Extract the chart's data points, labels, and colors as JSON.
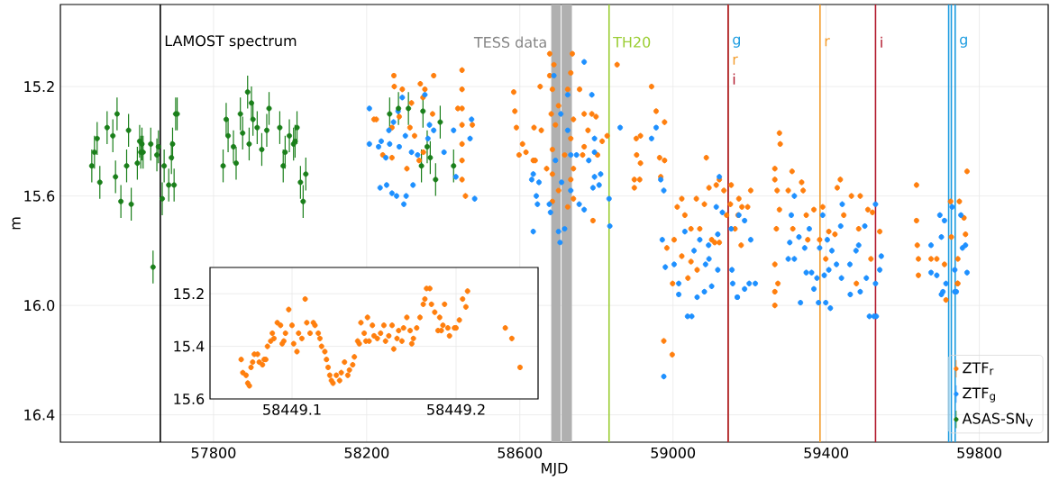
{
  "chart_data": [
    {
      "type": "scatter",
      "xlabel": "MJD",
      "ylabel": "m",
      "xlim": [
        57400,
        59980
      ],
      "ylim": [
        16.5,
        14.9
      ],
      "xticks": [
        57800,
        58200,
        58600,
        59000,
        59400,
        59800
      ],
      "yticks": [
        15.2,
        15.6,
        {
          "value": 16.0,
          "label": "16.0"
        },
        16.4
      ],
      "grid": true,
      "legend": "bottom right",
      "marker": "circle",
      "series": [
        {
          "name": "ZTF$_{r}$",
          "color": "#ff7f0e",
          "x": [
            58219,
            58225,
            58271,
            58272,
            58293,
            58340,
            58352,
            58375,
            58347,
            58317,
            58285,
            58313,
            58266,
            58325,
            58372,
            58242,
            58266,
            58305,
            58337,
            58348,
            58458,
            58476,
            58438,
            58449,
            58449,
            58449,
            58449,
            58449,
            58449,
            58449,
            58584,
            58587,
            58591,
            58607,
            58598,
            58616,
            58635,
            58640,
            58637,
            58653,
            58656,
            58670,
            58678,
            58689,
            58678,
            58737,
            58685,
            58733,
            58725,
            58701,
            58682,
            58740,
            58693,
            58733,
            58685,
            58717,
            58740,
            58685,
            58733,
            58701,
            58740,
            58685,
            58725,
            58756,
            58768,
            58788,
            58799,
            58768,
            58764,
            58778,
            58803,
            58815,
            58828,
            58791,
            58854,
            58944,
            58956,
            58978,
            58904,
            58915,
            58905,
            58915,
            58899,
            58913,
            58899,
            58965,
            58978,
            58968,
            59087,
            59011,
            59023,
            59061,
            59082,
            59094,
            59121,
            59031,
            59047,
            59070,
            58984,
            59003,
            59023,
            59047,
            58999,
            59039,
            59063,
            59109,
            58976,
            58998,
            59113,
            59133,
            59152,
            59150,
            59172,
            59180,
            59195,
            59203,
            59170,
            59178,
            59162,
            59101,
            59121,
            59140,
            59266,
            59278,
            59280,
            59266,
            59272,
            59278,
            59270,
            59266,
            59274,
            59266,
            59311,
            59301,
            59313,
            59336,
            59340,
            59348,
            59368,
            59383,
            59391,
            59399,
            59407,
            59429,
            59437,
            59446,
            59466,
            59489,
            59485,
            59509,
            59521,
            59540,
            59517,
            59479,
            59423,
            59352,
            59636,
            59636,
            59638,
            59641,
            59641,
            59674,
            59689,
            59709,
            59713,
            59725,
            59727,
            59748,
            59760,
            59764,
            59768,
            59743,
            59744,
            59266,
            59744
          ],
          "values": [
            15.32,
            15.32,
            15.16,
            15.2,
            15.21,
            15.19,
            15.21,
            15.16,
            15.24,
            15.26,
            15.31,
            15.35,
            15.35,
            15.38,
            15.3,
            15.45,
            15.46,
            15.5,
            15.47,
            15.44,
            15.6,
            15.34,
            15.28,
            15.14,
            15.21,
            15.28,
            15.34,
            15.41,
            15.47,
            15.54,
            15.22,
            15.29,
            15.35,
            15.41,
            15.45,
            15.44,
            15.47,
            15.47,
            15.35,
            15.2,
            15.36,
            15.5,
            15.08,
            15.12,
            15.16,
            15.08,
            15.21,
            15.15,
            15.21,
            15.27,
            15.3,
            15.32,
            15.34,
            15.39,
            15.43,
            15.45,
            15.5,
            15.52,
            15.54,
            15.58,
            15.61,
            15.62,
            15.64,
            15.21,
            15.3,
            15.3,
            15.31,
            15.42,
            15.45,
            15.36,
            15.45,
            15.4,
            15.38,
            15.69,
            15.12,
            15.2,
            15.29,
            15.33,
            15.39,
            15.38,
            15.45,
            15.48,
            15.54,
            15.54,
            15.57,
            15.46,
            15.47,
            15.53,
            15.46,
            15.64,
            15.61,
            15.61,
            15.63,
            15.57,
            15.54,
            15.67,
            15.72,
            15.72,
            15.79,
            15.76,
            15.82,
            15.84,
            15.92,
            15.9,
            15.87,
            15.77,
            16.13,
            16.18,
            15.56,
            15.58,
            15.56,
            15.63,
            15.61,
            15.64,
            15.64,
            15.58,
            15.67,
            15.78,
            15.72,
            15.76,
            15.77,
            15.67,
            15.5,
            15.37,
            15.41,
            15.54,
            15.58,
            15.65,
            15.72,
            15.85,
            15.92,
            15.95,
            15.51,
            15.58,
            15.72,
            15.55,
            15.58,
            15.67,
            15.65,
            15.76,
            15.64,
            15.83,
            15.73,
            15.57,
            15.54,
            15.67,
            15.6,
            15.6,
            15.72,
            15.65,
            15.66,
            15.73,
            15.83,
            15.92,
            15.74,
            15.76,
            15.56,
            15.69,
            15.78,
            15.83,
            15.89,
            15.83,
            15.83,
            15.85,
            15.98,
            15.62,
            15.75,
            15.62,
            15.68,
            15.74,
            15.51,
            15.92,
            15.83,
            16.0,
            15.92
          ],
          "errors": [
            0.01,
            0.01,
            0.01,
            0.01,
            0.01,
            0.01,
            0.01,
            0.01,
            0.01,
            0.01,
            0.01,
            0.01,
            0.01,
            0.01,
            0.01,
            0.01,
            0.01,
            0.01,
            0.01,
            0.01,
            0.01,
            0.01,
            0.01,
            0.01,
            0.01,
            0.01,
            0.01,
            0.01,
            0.01,
            0.01,
            0.01,
            0.01,
            0.01,
            0.01,
            0.01,
            0.01,
            0.01,
            0.01,
            0.01,
            0.01,
            0.01,
            0.01,
            0.01,
            0.01,
            0.01,
            0.01,
            0.01,
            0.01,
            0.01,
            0.01,
            0.01,
            0.01,
            0.01,
            0.01,
            0.01,
            0.01,
            0.01,
            0.01,
            0.01,
            0.01,
            0.01,
            0.01,
            0.01,
            0.01,
            0.01,
            0.01,
            0.01,
            0.01,
            0.01,
            0.01,
            0.01,
            0.01,
            0.01,
            0.01,
            0.01,
            0.01,
            0.01,
            0.01,
            0.01,
            0.01,
            0.01,
            0.01,
            0.01,
            0.01,
            0.01,
            0.01,
            0.01,
            0.01,
            0.01,
            0.01,
            0.01,
            0.01,
            0.01,
            0.01,
            0.01,
            0.01,
            0.01,
            0.01,
            0.01,
            0.01,
            0.01,
            0.01,
            0.01,
            0.01,
            0.01,
            0.01,
            0.01,
            0.01,
            0.01,
            0.01,
            0.01,
            0.01,
            0.01,
            0.01,
            0.01,
            0.01,
            0.01,
            0.01,
            0.01,
            0.01,
            0.01,
            0.01,
            0.01,
            0.01,
            0.01,
            0.01,
            0.01,
            0.01,
            0.01,
            0.01,
            0.01,
            0.01,
            0.01,
            0.01,
            0.01,
            0.01,
            0.01,
            0.01,
            0.01,
            0.01,
            0.01,
            0.01,
            0.01,
            0.01,
            0.01,
            0.01,
            0.01,
            0.01,
            0.01,
            0.01,
            0.01,
            0.01,
            0.01,
            0.01,
            0.01,
            0.01,
            0.01,
            0.01,
            0.01,
            0.01,
            0.01,
            0.01,
            0.01,
            0.01,
            0.01,
            0.01,
            0.01,
            0.01,
            0.01,
            0.01,
            0.01,
            0.01,
            0.01,
            0.01,
            0.01
          ]
        },
        {
          "name": "ZTF$_{g}$",
          "color": "#1e90ff",
          "x": [
            58207,
            58207,
            58231,
            58238,
            58250,
            58260,
            58285,
            58258,
            58293,
            58270,
            58282,
            58352,
            58301,
            58317,
            58333,
            58360,
            58375,
            58364,
            58235,
            58252,
            58266,
            58278,
            58297,
            58303,
            58321,
            58427,
            58470,
            58474,
            58482,
            58433,
            58402,
            58635,
            58631,
            58650,
            58643,
            58646,
            58677,
            58680,
            58635,
            58701,
            58705,
            58717,
            58689,
            58725,
            58707,
            58725,
            58693,
            58733,
            58709,
            58733,
            58748,
            58768,
            58788,
            58795,
            58795,
            58780,
            58795,
            58791,
            58807,
            58811,
            58755,
            58768,
            58833,
            58835,
            58862,
            58944,
            58956,
            58968,
            58976,
            58972,
            58980,
            59003,
            59015,
            59031,
            59055,
            59070,
            59094,
            59101,
            59063,
            59117,
            59015,
            58976,
            59038,
            59049,
            59121,
            59113,
            59129,
            59093,
            59085,
            59117,
            59152,
            59154,
            59172,
            59203,
            59187,
            59156,
            59187,
            59215,
            59199,
            59168,
            59309,
            59317,
            59305,
            59301,
            59317,
            59329,
            59344,
            59348,
            59362,
            59376,
            59368,
            59333,
            59356,
            59391,
            59383,
            59395,
            59407,
            59403,
            59415,
            59427,
            59438,
            59442,
            59462,
            59478,
            59485,
            59501,
            59505,
            59440,
            59463,
            59489,
            59529,
            59529,
            59540,
            59544,
            59674,
            59697,
            59709,
            59701,
            59674,
            59689,
            59713,
            59729,
            59736,
            59752,
            59756,
            59764,
            59768,
            59705,
            59736,
            59082,
            59168,
            59380,
            59399,
            59411,
            59513,
            59525,
            59531,
            59701,
            59740
          ],
          "values": [
            15.28,
            15.41,
            15.42,
            15.4,
            15.46,
            15.41,
            15.42,
            15.36,
            15.24,
            15.33,
            15.29,
            15.23,
            15.38,
            15.44,
            15.45,
            15.39,
            15.36,
            15.34,
            15.57,
            15.56,
            15.59,
            15.6,
            15.63,
            15.6,
            15.56,
            15.36,
            15.39,
            15.32,
            15.61,
            15.53,
            15.44,
            15.52,
            15.54,
            15.55,
            15.6,
            15.63,
            15.63,
            15.66,
            15.73,
            15.73,
            15.77,
            15.72,
            15.16,
            15.23,
            15.3,
            15.36,
            15.47,
            15.45,
            15.55,
            15.58,
            15.45,
            15.11,
            15.23,
            15.39,
            15.44,
            15.47,
            15.53,
            15.57,
            15.56,
            15.52,
            15.63,
            15.65,
            15.61,
            15.71,
            15.35,
            15.39,
            15.35,
            15.54,
            15.58,
            15.76,
            15.86,
            15.85,
            15.92,
            15.73,
            15.8,
            15.76,
            15.83,
            15.93,
            15.97,
            15.74,
            15.96,
            16.26,
            16.04,
            16.04,
            15.53,
            15.64,
            15.66,
            15.78,
            15.85,
            15.87,
            15.72,
            15.87,
            15.67,
            15.76,
            15.69,
            15.92,
            15.94,
            15.92,
            15.92,
            15.97,
            15.67,
            15.6,
            15.77,
            15.83,
            15.83,
            15.75,
            15.79,
            15.88,
            15.88,
            15.9,
            15.94,
            15.99,
            15.72,
            15.67,
            15.79,
            15.89,
            15.87,
            15.76,
            15.8,
            15.85,
            15.71,
            15.63,
            15.85,
            15.8,
            15.78,
            15.71,
            15.9,
            15.9,
            15.96,
            15.95,
            15.63,
            15.92,
            15.87,
            15.82,
            15.78,
            15.67,
            15.69,
            15.75,
            15.88,
            15.89,
            15.92,
            15.64,
            15.87,
            15.67,
            15.79,
            15.78,
            15.88,
            15.95,
            15.95,
            15.95,
            15.97,
            15.99,
            15.99,
            16.01,
            16.04,
            16.04,
            16.04,
            15.96,
            15.95
          ],
          "errors": [
            0.01,
            0.01,
            0.01,
            0.01,
            0.01,
            0.01,
            0.01,
            0.01,
            0.01,
            0.01,
            0.01,
            0.01,
            0.01,
            0.01,
            0.01,
            0.01,
            0.01,
            0.01,
            0.01,
            0.01,
            0.01,
            0.01,
            0.01,
            0.01,
            0.01,
            0.01,
            0.01,
            0.01,
            0.01,
            0.01,
            0.01,
            0.01,
            0.01,
            0.01,
            0.01,
            0.01,
            0.01,
            0.01,
            0.01,
            0.01,
            0.01,
            0.01,
            0.01,
            0.01,
            0.01,
            0.01,
            0.01,
            0.01,
            0.01,
            0.01,
            0.01,
            0.01,
            0.01,
            0.01,
            0.01,
            0.01,
            0.01,
            0.01,
            0.01,
            0.01,
            0.01,
            0.01,
            0.01,
            0.01,
            0.01,
            0.01,
            0.01,
            0.01,
            0.01,
            0.01,
            0.01,
            0.01,
            0.01,
            0.01,
            0.01,
            0.01,
            0.01,
            0.01,
            0.01,
            0.01,
            0.01,
            0.01,
            0.01,
            0.01,
            0.01,
            0.01,
            0.01,
            0.01,
            0.01,
            0.01,
            0.01,
            0.01,
            0.01,
            0.01,
            0.01,
            0.01,
            0.01,
            0.01,
            0.01,
            0.01,
            0.01,
            0.01,
            0.01,
            0.01,
            0.01,
            0.01,
            0.01,
            0.01,
            0.01,
            0.01,
            0.01,
            0.01,
            0.01,
            0.01,
            0.01,
            0.01,
            0.01,
            0.01,
            0.01,
            0.01,
            0.01,
            0.01,
            0.01,
            0.01,
            0.01,
            0.01,
            0.01,
            0.01,
            0.01,
            0.01,
            0.01,
            0.01,
            0.01,
            0.01,
            0.01,
            0.01,
            0.01,
            0.01,
            0.01,
            0.01,
            0.01,
            0.01,
            0.01,
            0.01,
            0.01,
            0.01,
            0.01,
            0.01,
            0.01,
            0.01,
            0.01,
            0.01,
            0.01,
            0.01,
            0.01,
            0.01,
            0.01,
            0.01,
            0.01
          ]
        },
        {
          "name": "ASAS-SN$_{V}$",
          "color": "#1a7f1a",
          "x": [
            57482,
            57489,
            57496,
            57503,
            57522,
            57537,
            57544,
            57548,
            57558,
            57573,
            57578,
            57585,
            57601,
            57607,
            57610,
            57613,
            57616,
            57636,
            57642,
            57652,
            57656,
            57666,
            57671,
            57683,
            57690,
            57693,
            57697,
            57701,
            57705,
            57825,
            57833,
            57838,
            57852,
            57859,
            57870,
            57876,
            57889,
            57893,
            57899,
            57903,
            57914,
            57926,
            57939,
            57945,
            57973,
            57982,
            57987,
            57998,
            58009,
            58013,
            58018,
            58027,
            58034,
            58041,
            58260,
            58283,
            58309,
            58343,
            58347,
            58358,
            58366,
            58380,
            58392,
            58427
          ],
          "values": [
            15.49,
            15.44,
            15.39,
            15.55,
            15.35,
            15.38,
            15.53,
            15.3,
            15.62,
            15.49,
            15.36,
            15.63,
            15.48,
            15.4,
            15.44,
            15.41,
            15.44,
            15.41,
            15.86,
            15.45,
            15.42,
            15.61,
            15.49,
            15.56,
            15.46,
            15.41,
            15.56,
            15.3,
            15.3,
            15.49,
            15.32,
            15.38,
            15.42,
            15.48,
            15.3,
            15.37,
            15.22,
            15.41,
            15.26,
            15.32,
            15.35,
            15.43,
            15.36,
            15.28,
            15.35,
            15.49,
            15.44,
            15.38,
            15.41,
            15.4,
            15.35,
            15.55,
            15.62,
            15.52,
            15.3,
            15.28,
            15.28,
            15.49,
            15.29,
            15.42,
            15.46,
            15.54,
            15.33,
            15.49
          ],
          "errors": [
            0.06,
            0.06,
            0.06,
            0.06,
            0.06,
            0.06,
            0.06,
            0.06,
            0.06,
            0.06,
            0.06,
            0.06,
            0.06,
            0.06,
            0.06,
            0.06,
            0.06,
            0.06,
            0.06,
            0.06,
            0.06,
            0.06,
            0.06,
            0.06,
            0.06,
            0.06,
            0.06,
            0.06,
            0.06,
            0.06,
            0.06,
            0.06,
            0.06,
            0.06,
            0.06,
            0.06,
            0.06,
            0.06,
            0.06,
            0.06,
            0.06,
            0.06,
            0.06,
            0.06,
            0.06,
            0.06,
            0.06,
            0.06,
            0.06,
            0.06,
            0.06,
            0.06,
            0.06,
            0.06,
            0.06,
            0.06,
            0.06,
            0.06,
            0.06,
            0.06,
            0.06,
            0.06,
            0.06,
            0.06
          ]
        }
      ],
      "ref_lines": [
        {
          "axis": "x",
          "value": 57661,
          "label": "LAMOST spectrum",
          "color": "#000000"
        },
        {
          "axis": "x",
          "value": 58833,
          "label": "TH20",
          "color": "#9acd32"
        },
        {
          "axis": "x",
          "value": 59144,
          "label": "g",
          "color": "#1a9be0"
        },
        {
          "axis": "x",
          "value": 59144,
          "label": "r",
          "color": "#f39c2b"
        },
        {
          "axis": "x",
          "value": 59144,
          "label": "i",
          "color": "#b2182b"
        },
        {
          "axis": "x",
          "value": 59384,
          "label": "r",
          "color": "#f39c2b"
        },
        {
          "axis": "x",
          "value": 59529,
          "label": "i",
          "color": "#b2182b"
        },
        {
          "axis": "x",
          "value": 59720,
          "color": "#1a9be0"
        },
        {
          "axis": "x",
          "value": 59727,
          "color": "#1a9be0"
        },
        {
          "axis": "x",
          "value": 59737,
          "label": "g",
          "color": "#1a9be0"
        }
      ],
      "bands": [
        {
          "axis": "x",
          "from": 58682,
          "to": 58707,
          "label": "TESS data",
          "color": "#b0b0b0"
        },
        {
          "axis": "x",
          "from": 58709,
          "to": 58736,
          "color": "#b0b0b0"
        }
      ]
    },
    {
      "type": "scatter",
      "xlim": [
        58449.05,
        58449.25
      ],
      "ylim": [
        15.6,
        15.1
      ],
      "xticks": [
        58449.1,
        58449.2
      ],
      "yticks": [
        15.2,
        15.4,
        15.6
      ],
      "grid": true,
      "marker": "circle",
      "color": "#ff7f0e",
      "x": [
        58449.069,
        58449.07,
        58449.072,
        58449.073,
        58449.074,
        58449.075,
        58449.076,
        58449.077,
        58449.079,
        58449.08,
        58449.082,
        58449.083,
        58449.084,
        58449.085,
        58449.087,
        58449.088,
        58449.089,
        58449.091,
        58449.093,
        58449.094,
        58449.095,
        58449.096,
        58449.098,
        58449.1,
        58449.101,
        58449.103,
        58449.104,
        58449.106,
        58449.108,
        58449.109,
        58449.111,
        58449.113,
        58449.114,
        58449.116,
        58449.117,
        58449.118,
        58449.12,
        58449.121,
        58449.122,
        58449.123,
        58449.124,
        58449.125,
        58449.127,
        58449.129,
        58449.13,
        58449.132,
        58449.134,
        58449.135,
        58449.137,
        58449.138,
        58449.14,
        58449.141,
        58449.142,
        58449.144,
        58449.145,
        58449.146,
        58449.147,
        58449.149,
        58449.15,
        58449.152,
        58449.154,
        58449.156,
        58449.157,
        58449.159,
        58449.161,
        58449.162,
        58449.164,
        58449.165,
        58449.167,
        58449.168,
        58449.17,
        58449.172,
        58449.173,
        58449.174,
        58449.176,
        58449.178,
        58449.18,
        58449.181,
        58449.182,
        58449.184,
        58449.185,
        58449.187,
        58449.189,
        58449.19,
        58449.191,
        58449.192,
        58449.193,
        58449.195,
        58449.196,
        58449.199,
        58449.2,
        58449.202,
        58449.204,
        58449.206,
        58449.207,
        58449.23,
        58449.234,
        58449.239
      ],
      "values": [
        15.45,
        15.5,
        15.51,
        15.54,
        15.55,
        15.48,
        15.46,
        15.43,
        15.43,
        15.46,
        15.47,
        15.45,
        15.45,
        15.4,
        15.38,
        15.35,
        15.37,
        15.31,
        15.32,
        15.39,
        15.38,
        15.35,
        15.26,
        15.32,
        15.39,
        15.42,
        15.35,
        15.37,
        15.22,
        15.31,
        15.35,
        15.31,
        15.32,
        15.35,
        15.37,
        15.4,
        15.42,
        15.45,
        15.48,
        15.51,
        15.53,
        15.54,
        15.51,
        15.53,
        15.5,
        15.46,
        15.51,
        15.49,
        15.47,
        15.44,
        15.38,
        15.39,
        15.31,
        15.35,
        15.38,
        15.29,
        15.38,
        15.32,
        15.36,
        15.37,
        15.35,
        15.32,
        15.38,
        15.36,
        15.32,
        15.41,
        15.37,
        15.34,
        15.38,
        15.33,
        15.29,
        15.34,
        15.39,
        15.37,
        15.33,
        15.29,
        15.24,
        15.22,
        15.18,
        15.18,
        15.24,
        15.27,
        15.34,
        15.29,
        15.34,
        15.32,
        15.24,
        15.33,
        15.36,
        15.33,
        15.33,
        15.3,
        15.22,
        15.25,
        15.19,
        15.33,
        15.37,
        15.48
      ],
      "errors": [
        0.01,
        0.01,
        0.01,
        0.01,
        0.01,
        0.01,
        0.01,
        0.01,
        0.01,
        0.01,
        0.01,
        0.01,
        0.01,
        0.01,
        0.01,
        0.01,
        0.01,
        0.01,
        0.01,
        0.01,
        0.01,
        0.01,
        0.01,
        0.01,
        0.01,
        0.01,
        0.01,
        0.01,
        0.01,
        0.01,
        0.01,
        0.01,
        0.01,
        0.01,
        0.01,
        0.01,
        0.01,
        0.01,
        0.01,
        0.01,
        0.01,
        0.01,
        0.01,
        0.01,
        0.01,
        0.01,
        0.01,
        0.01,
        0.01,
        0.01,
        0.01,
        0.01,
        0.01,
        0.01,
        0.01,
        0.01,
        0.01,
        0.01,
        0.01,
        0.01,
        0.01,
        0.01,
        0.01,
        0.01,
        0.01,
        0.01,
        0.01,
        0.01,
        0.01,
        0.01,
        0.01,
        0.01,
        0.01,
        0.01,
        0.01,
        0.01,
        0.01,
        0.01,
        0.01,
        0.01,
        0.01,
        0.01,
        0.01,
        0.01,
        0.01,
        0.01,
        0.01,
        0.01,
        0.01,
        0.01,
        0.01,
        0.01,
        0.01,
        0.01,
        0.01,
        0.01,
        0.01,
        0.01
      ]
    }
  ]
}
